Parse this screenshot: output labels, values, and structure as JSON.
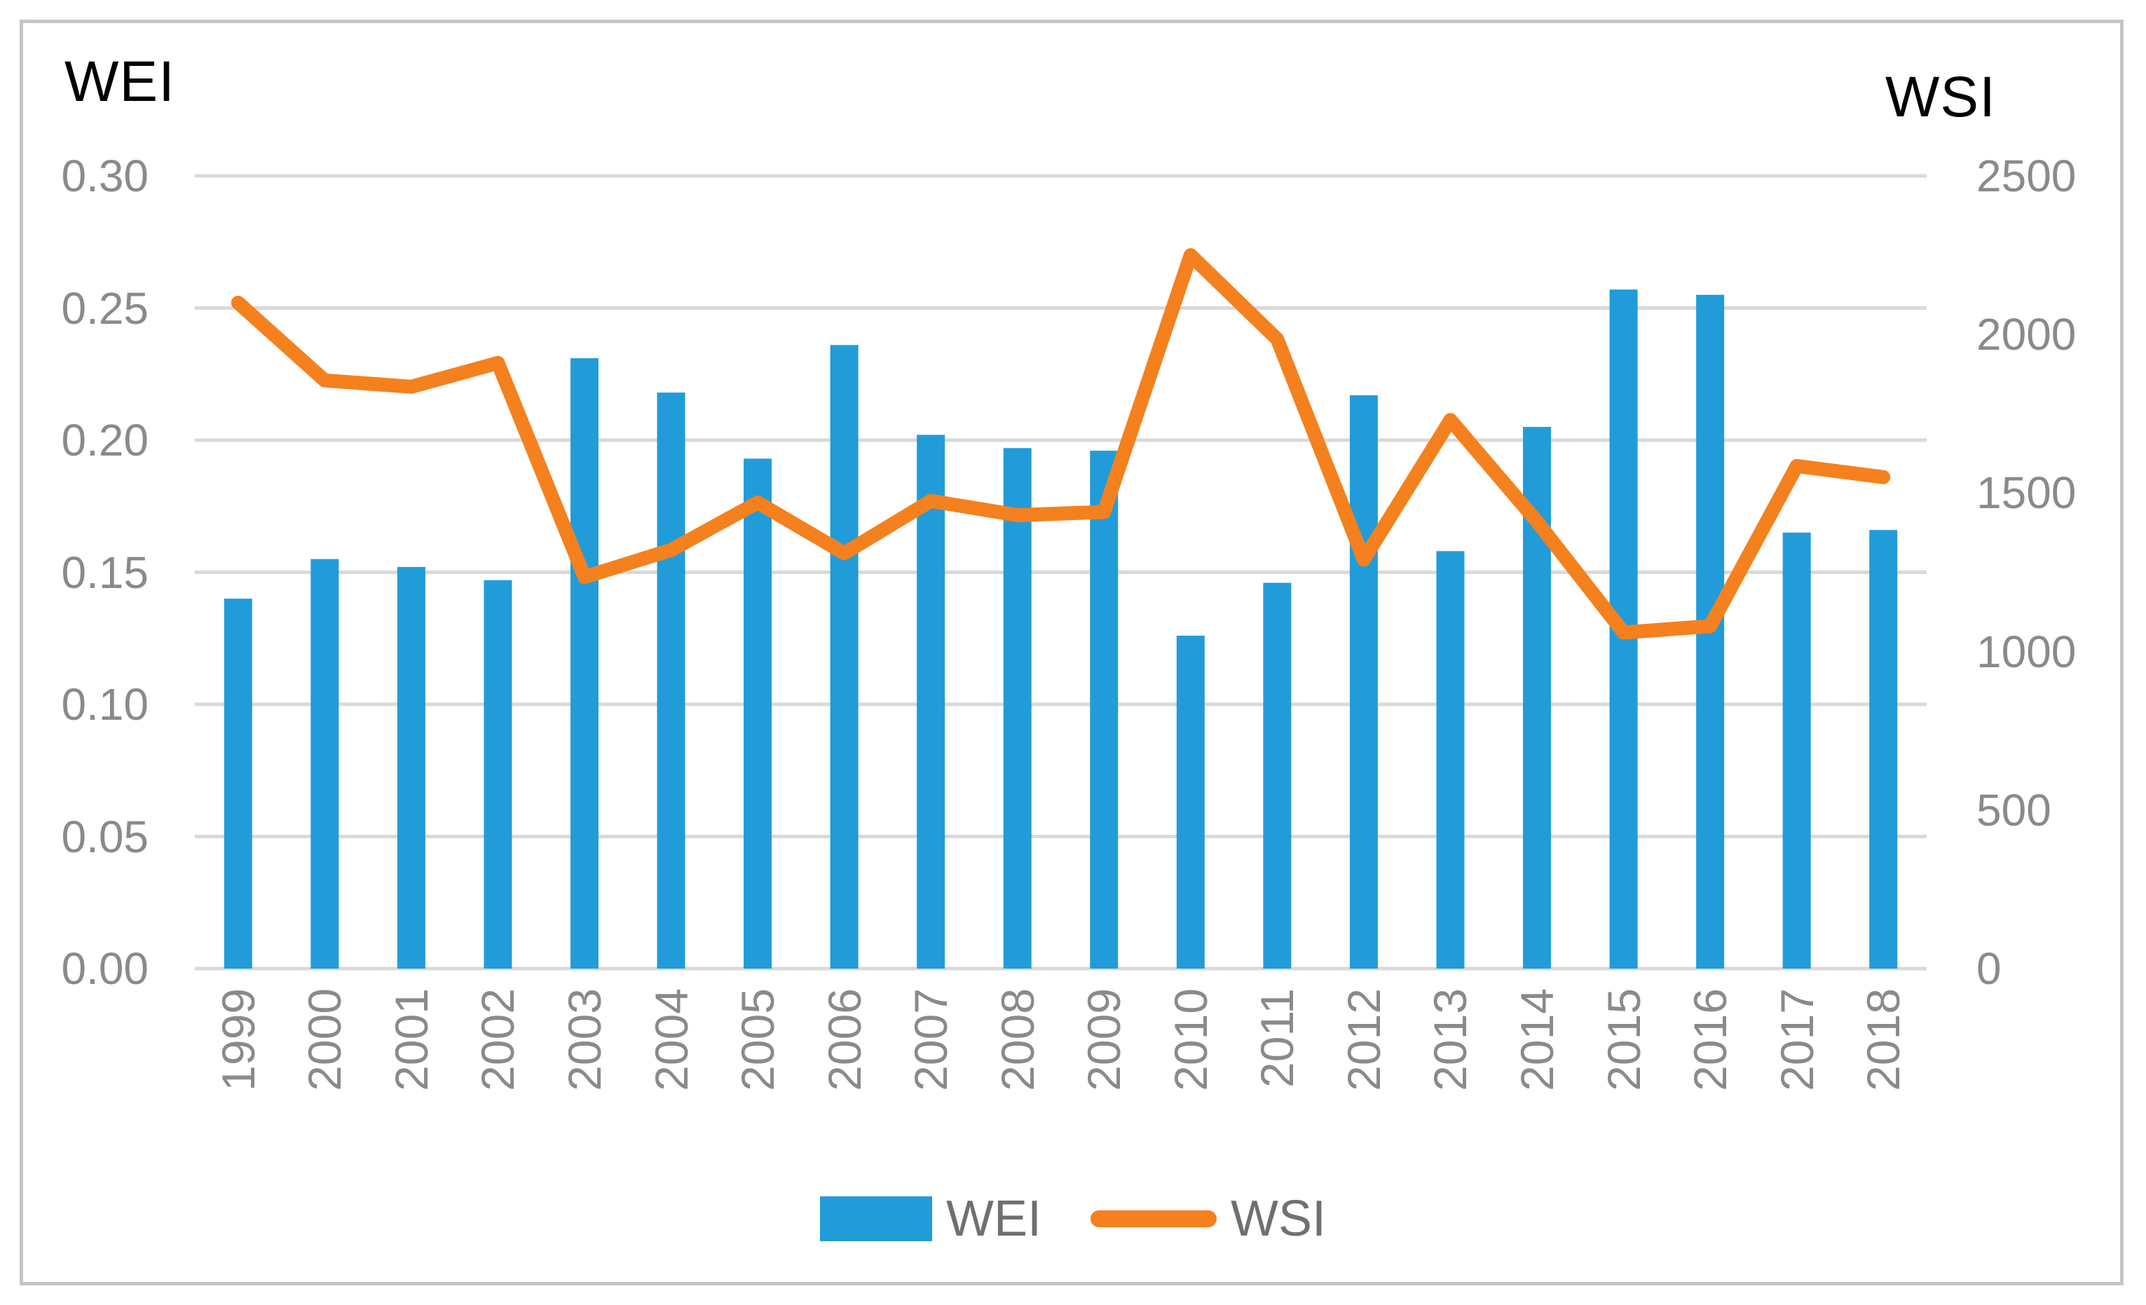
{
  "colors": {
    "bar": "#219cd9",
    "line": "#f5801e",
    "grid": "#d9d9d9",
    "tick_text": "#8a8a8a",
    "legend_text": "#707070",
    "title_text": "#000000",
    "frame": "#c6c6c6"
  },
  "legend": {
    "wei_label": "WEI",
    "wsi_label": "WSI"
  },
  "chart_data": {
    "type": "bar",
    "subtype": "combo bar+line, dual axis",
    "categories": [
      "1999",
      "2000",
      "2001",
      "2002",
      "2003",
      "2004",
      "2005",
      "2006",
      "2007",
      "2008",
      "2009",
      "2010",
      "2011",
      "2012",
      "2013",
      "2014",
      "2015",
      "2016",
      "2017",
      "2018"
    ],
    "series": [
      {
        "name": "WEI",
        "type": "bar",
        "axis": "left",
        "values": [
          0.14,
          0.155,
          0.152,
          0.147,
          0.231,
          0.218,
          0.193,
          0.236,
          0.202,
          0.197,
          0.196,
          0.126,
          0.146,
          0.217,
          0.158,
          0.205,
          0.257,
          0.255,
          0.165,
          0.166
        ]
      },
      {
        "name": "WSI",
        "type": "line",
        "axis": "right",
        "values": [
          2100,
          1855,
          1835,
          1910,
          1235,
          1320,
          1470,
          1310,
          1475,
          1430,
          1440,
          2250,
          1985,
          1290,
          1730,
          1410,
          1060,
          1080,
          1585,
          1550
        ]
      }
    ],
    "left_axis": {
      "title": "WEI",
      "min": 0,
      "max": 0.3,
      "step": 0.05,
      "tick_labels": [
        "0.30",
        "0.25",
        "0.20",
        "0.15",
        "0.10",
        "0.05",
        "0.00"
      ]
    },
    "right_axis": {
      "title": "WSI",
      "min": 0,
      "max": 2500,
      "step": 500,
      "tick_labels": [
        "2500",
        "2000",
        "1500",
        "1000",
        "500",
        "0"
      ]
    },
    "grid": true,
    "legend_position": "bottom",
    "title": "",
    "xlabel": "",
    "ylabel": ""
  }
}
